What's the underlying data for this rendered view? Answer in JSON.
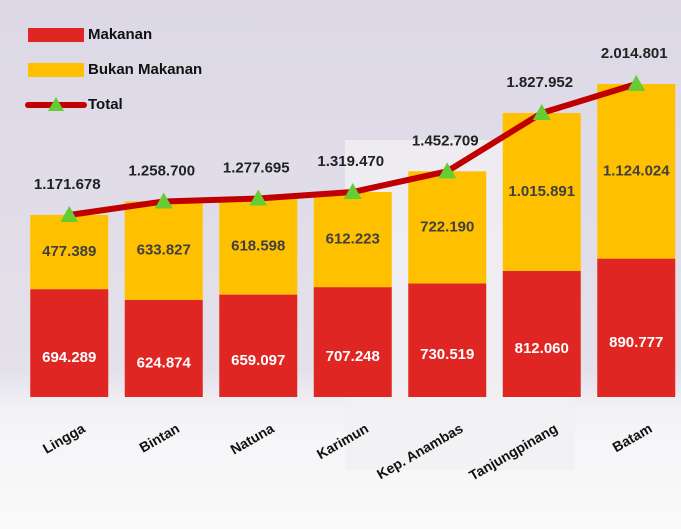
{
  "chart_data": {
    "type": "bar",
    "stacked": true,
    "categories": [
      "Lingga",
      "Bintan",
      "Natuna",
      "Karimun",
      "Kep. Anambas",
      "Tanjungpinang",
      "Batam"
    ],
    "series": [
      {
        "name": "Makanan",
        "type": "bar",
        "color": "#e02622",
        "values": [
          694289,
          624874,
          659097,
          707248,
          730519,
          812060,
          890777
        ],
        "value_labels": [
          "694.289",
          "624.874",
          "659.097",
          "707.248",
          "730.519",
          "812.060",
          "890.777"
        ]
      },
      {
        "name": "Bukan Makanan",
        "type": "bar",
        "color": "#ffc000",
        "values": [
          477389,
          633827,
          618598,
          612223,
          722190,
          1015891,
          1124024
        ],
        "value_labels": [
          "477.389",
          "633.827",
          "618.598",
          "612.223",
          "722.190",
          "1.015.891",
          "1.124.024"
        ]
      },
      {
        "name": "Total",
        "type": "line",
        "color": "#c00000",
        "marker_color": "#66cc33",
        "values": [
          1171678,
          1258700,
          1277695,
          1319470,
          1452709,
          1827952,
          2014801
        ],
        "value_labels": [
          "1.171.678",
          "1.258.700",
          "1.277.695",
          "1.319.470",
          "1.452.709",
          "1.827.952",
          "2.014.801"
        ]
      }
    ],
    "legend": "top-left"
  }
}
